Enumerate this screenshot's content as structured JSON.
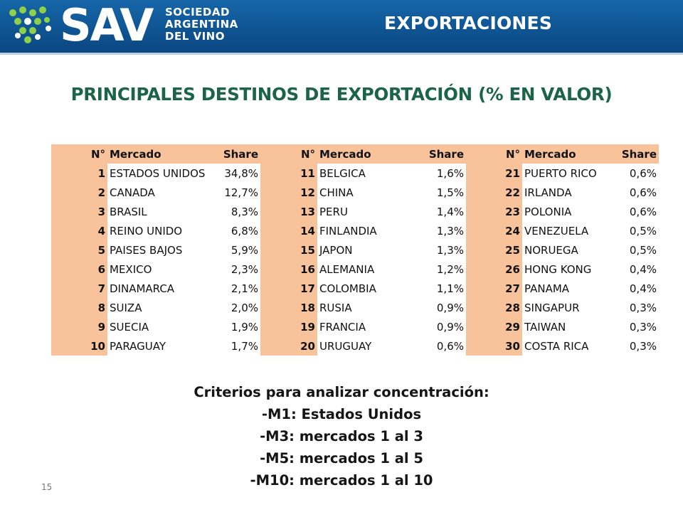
{
  "header": {
    "logo_text": "SAV",
    "org_lines": [
      "SOCIEDAD",
      "ARGENTINA",
      "DEL VINO"
    ],
    "title": "EXPORTACIONES",
    "background_color": "#0f5593",
    "dots_color": "#8fd04a"
  },
  "main_title": "PRINCIPALES DESTINOS DE EXPORTACIÓN (% EN VALOR)",
  "table": {
    "headers": {
      "num": "N°",
      "market": "Mercado",
      "share": "Share"
    },
    "header_fill_color": "#f8c39a",
    "rows": [
      [
        {
          "n": "1",
          "m": "ESTADOS UNIDOS",
          "s": "34,8%"
        },
        {
          "n": "11",
          "m": "BELGICA",
          "s": "1,6%"
        },
        {
          "n": "21",
          "m": "PUERTO RICO",
          "s": "0,6%"
        }
      ],
      [
        {
          "n": "2",
          "m": "CANADA",
          "s": "12,7%"
        },
        {
          "n": "12",
          "m": "CHINA",
          "s": "1,5%"
        },
        {
          "n": "22",
          "m": "IRLANDA",
          "s": "0,6%"
        }
      ],
      [
        {
          "n": "3",
          "m": "BRASIL",
          "s": "8,3%"
        },
        {
          "n": "13",
          "m": "PERU",
          "s": "1,4%"
        },
        {
          "n": "23",
          "m": "POLONIA",
          "s": "0,6%"
        }
      ],
      [
        {
          "n": "4",
          "m": "REINO UNIDO",
          "s": "6,8%"
        },
        {
          "n": "14",
          "m": "FINLANDIA",
          "s": "1,3%"
        },
        {
          "n": "24",
          "m": "VENEZUELA",
          "s": "0,5%"
        }
      ],
      [
        {
          "n": "5",
          "m": "PAISES BAJOS",
          "s": "5,9%"
        },
        {
          "n": "15",
          "m": "JAPON",
          "s": "1,3%"
        },
        {
          "n": "25",
          "m": "NORUEGA",
          "s": "0,5%"
        }
      ],
      [
        {
          "n": "6",
          "m": "MEXICO",
          "s": "2,3%"
        },
        {
          "n": "16",
          "m": "ALEMANIA",
          "s": "1,2%"
        },
        {
          "n": "26",
          "m": "HONG KONG",
          "s": "0,4%"
        }
      ],
      [
        {
          "n": "7",
          "m": "DINAMARCA",
          "s": "2,1%"
        },
        {
          "n": "17",
          "m": "COLOMBIA",
          "s": "1,1%"
        },
        {
          "n": "27",
          "m": "PANAMA",
          "s": "0,4%"
        }
      ],
      [
        {
          "n": "8",
          "m": "SUIZA",
          "s": "2,0%"
        },
        {
          "n": "18",
          "m": "RUSIA",
          "s": "0,9%"
        },
        {
          "n": "28",
          "m": "SINGAPUR",
          "s": "0,3%"
        }
      ],
      [
        {
          "n": "9",
          "m": "SUECIA",
          "s": "1,9%"
        },
        {
          "n": "19",
          "m": "FRANCIA",
          "s": "0,9%"
        },
        {
          "n": "29",
          "m": "TAIWAN",
          "s": "0,3%"
        }
      ],
      [
        {
          "n": "10",
          "m": "PARAGUAY",
          "s": "1,7%"
        },
        {
          "n": "20",
          "m": "URUGUAY",
          "s": "0,6%"
        },
        {
          "n": "30",
          "m": "COSTA RICA",
          "s": "0,3%"
        }
      ]
    ]
  },
  "criteria": {
    "heading": "Criterios para analizar concentración:",
    "items": [
      "-M1: Estados Unidos",
      "-M3: mercados 1 al 3",
      "-M5: mercados 1 al 5",
      "-M10: mercados 1 al 10"
    ]
  },
  "page_number": "15"
}
